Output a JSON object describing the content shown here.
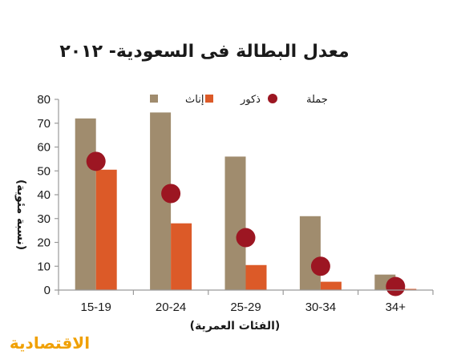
{
  "logo": "الاقتصادية",
  "colors": {
    "females": "#a08c6e",
    "males": "#dc5a28",
    "total": "#9c1622",
    "axis": "#9a9a9a",
    "logo": "#f0a000"
  },
  "chart_data": {
    "type": "bar",
    "title": "معدل البطالة فى السعودية- ٢٠١٢",
    "xlabel": "(الفئات العمرية)",
    "ylabel": "(نسبة مئوية)",
    "ylim": [
      0,
      80
    ],
    "yticks": [
      "0",
      "10",
      "20",
      "30",
      "40",
      "50",
      "60",
      "70",
      "80"
    ],
    "categories": [
      "15-19",
      "20-24",
      "25-29",
      "30-34",
      "34+"
    ],
    "series": [
      {
        "name": "إناث",
        "kind": "bar",
        "values": [
          72,
          74.5,
          56,
          31,
          6.5
        ]
      },
      {
        "name": "ذكور",
        "kind": "bar",
        "values": [
          50.5,
          28,
          10.5,
          3.5,
          0.5
        ]
      },
      {
        "name": "جملة",
        "kind": "marker",
        "values": [
          54,
          40.5,
          22,
          10,
          1.5
        ]
      }
    ],
    "grid": false,
    "legend_position": "top-right"
  }
}
